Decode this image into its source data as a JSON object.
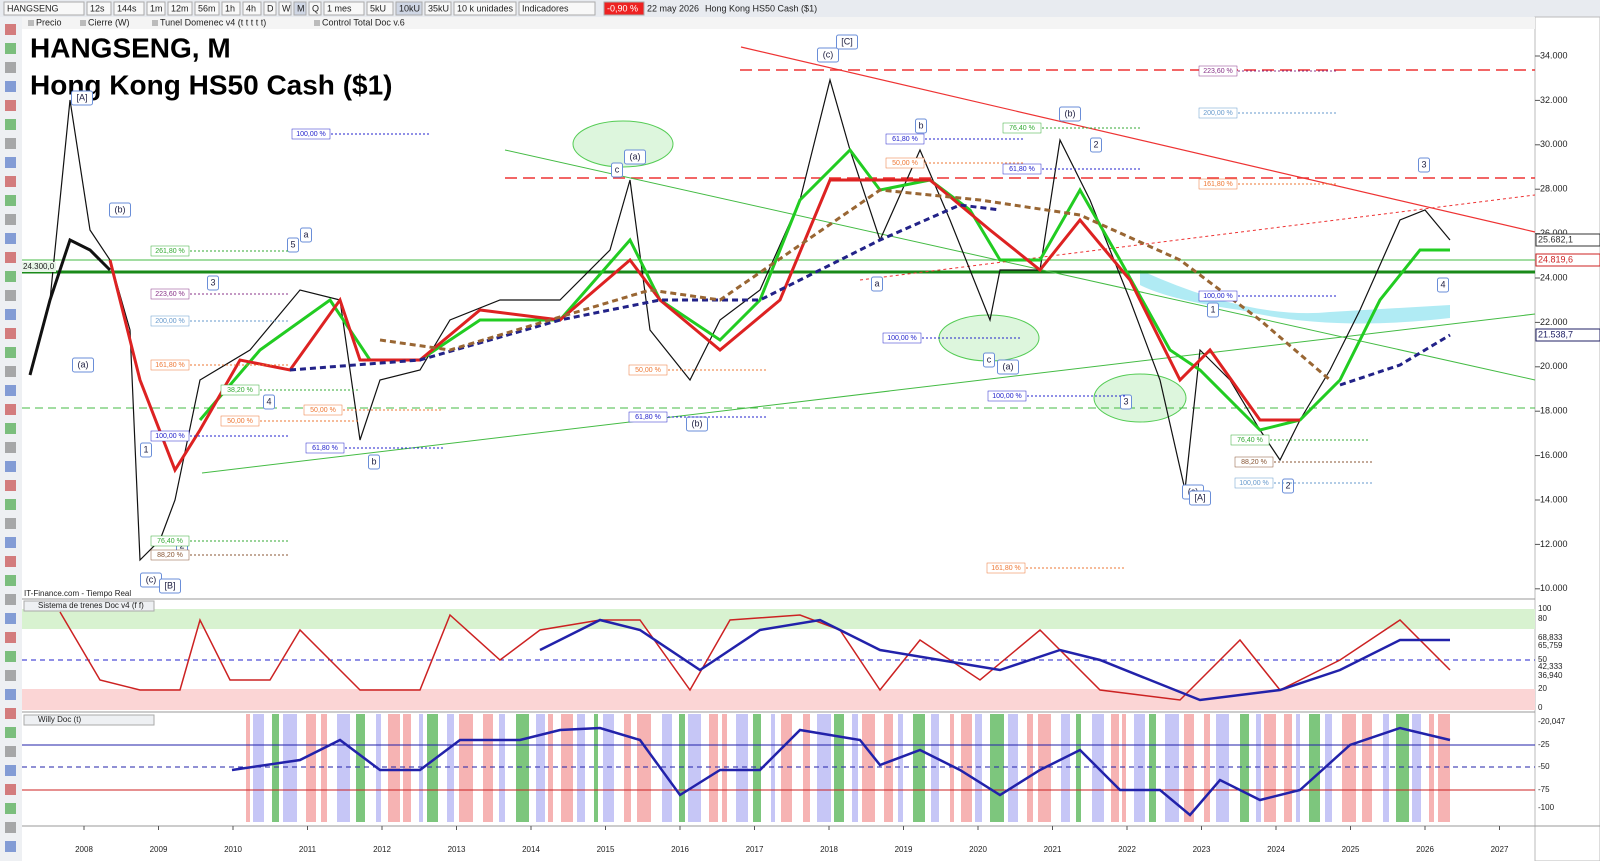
{
  "toolbar": {
    "symbol": "HANGSENG",
    "intervals": [
      "12s",
      "144s",
      "1m",
      "12m",
      "56m",
      "1h",
      "4h",
      "D",
      "W",
      "M",
      "Q"
    ],
    "period": "1 mes",
    "units": [
      "5kU",
      "10kU",
      "35kU"
    ],
    "units_menu": "10 k unidades",
    "indicators": "Indicadores",
    "change": "-0,90 %",
    "date": "22 may 2026",
    "instrument": "Hong Kong HS50 Cash ($1)"
  },
  "legend_bar": [
    "Precio",
    "Cierre (W)",
    "Tunel Domenec v4 (t t t t t)",
    "Control Total Doc v.6"
  ],
  "title": {
    "line1": "HANGSENG, M",
    "line2": "Hong Kong HS50 Cash ($1)"
  },
  "price_axis": [
    "34.000",
    "32.000",
    "30.000",
    "28.000",
    "26.000",
    "24.000",
    "22.000",
    "20.000",
    "18.000",
    "16.000",
    "14.000",
    "12.000",
    "10.000"
  ],
  "price_tags": [
    "25.682,1",
    "24.819,6",
    "21.538,7"
  ],
  "level_label": "24.300,0",
  "time_axis": [
    "2008",
    "2009",
    "2010",
    "2011",
    "2012",
    "2013",
    "2014",
    "2015",
    "2016",
    "2017",
    "2018",
    "2019",
    "2020",
    "2021",
    "2022",
    "2023",
    "2024",
    "2025",
    "2026",
    "2027"
  ],
  "source": "IT-Finance.com - Tiempo Real",
  "wave_labels": [
    "[A]",
    "(a)",
    "(b)",
    "5",
    "a",
    "3",
    "4",
    "1",
    "2",
    "(c)",
    "[B]",
    "b",
    "c",
    "(a)",
    "(b)",
    "(c)",
    "[C]",
    "b",
    "a",
    "c",
    "(a)",
    "(b)",
    "2",
    "3",
    "1",
    "(c)",
    "[A]",
    "2",
    "3",
    "4"
  ],
  "fib_labels": [
    "100,00 %",
    "261,80 %",
    "223,60 %",
    "200,00 %",
    "161,80 %",
    "100,00 %",
    "38,20 %",
    "50,00 %",
    "61,80 %",
    "50,00 %",
    "76,40 %",
    "88,20 %",
    "50,00 %",
    "61,80 %",
    "61,80 %",
    "50,00 %",
    "76,40 %",
    "61,80 %",
    "100,00 %",
    "100,00 %",
    "161,80 %",
    "223,60 %",
    "200,00 %",
    "161,80 %",
    "100,00 %",
    "76,40 %",
    "88,20 %",
    "100,00 %"
  ],
  "panels": [
    {
      "name": "Sistema de trenes Doc v4 (f f)",
      "axis": [
        "100",
        "80",
        "68,833",
        "65,759",
        "50",
        "42,333",
        "36,940",
        "20",
        "0"
      ]
    },
    {
      "name": "Willy Doc (t)",
      "axis": [
        "-20,047",
        "-25",
        "-50",
        "-75",
        "-100"
      ]
    }
  ]
}
